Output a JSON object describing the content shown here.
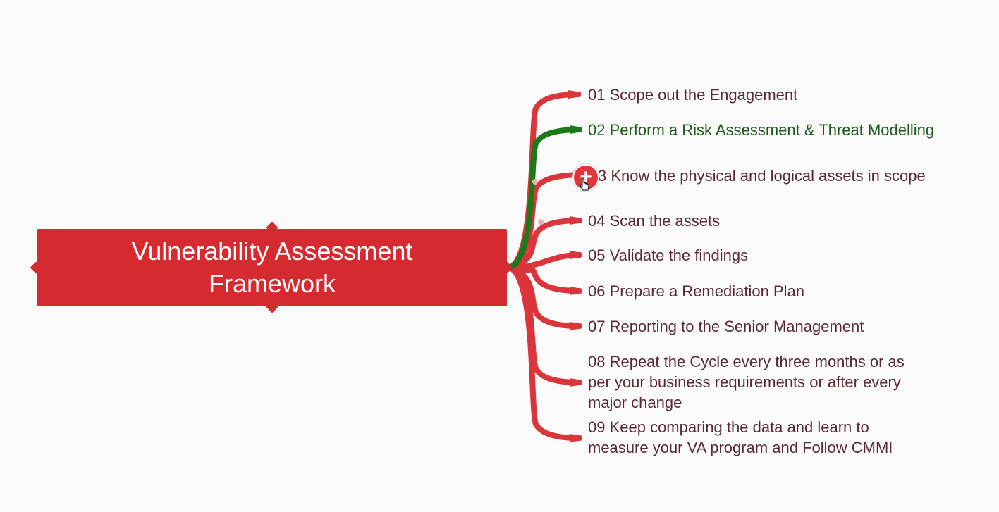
{
  "root": {
    "title": "Vulnerability Assessment\nFramework",
    "color": "#d52b30"
  },
  "branch_color": "#d9353a",
  "active_branch_color": "#1a7a1a",
  "branches": [
    {
      "label": "01 Scope out the Engagement",
      "active": false
    },
    {
      "label": "02 Perform a Risk Assessment & Threat Modelling",
      "active": true
    },
    {
      "label": "3 Know the physical and logical assets in scope",
      "active": false
    },
    {
      "label": "04 Scan the assets",
      "active": false
    },
    {
      "label": "05 Validate the findings",
      "active": false
    },
    {
      "label": "06 Prepare a Remediation Plan",
      "active": false
    },
    {
      "label": "07 Reporting to the Senior Management",
      "active": false
    },
    {
      "label": "08 Repeat the Cycle every three months or as\nper your business requirements or after every\nmajor change",
      "active": false
    },
    {
      "label": "09 Keep comparing the data and learn to\nmeasure your VA program and Follow CMMI",
      "active": false
    }
  ],
  "add_button_icon": "plus-icon",
  "cursor_icon": "hand-cursor-icon"
}
